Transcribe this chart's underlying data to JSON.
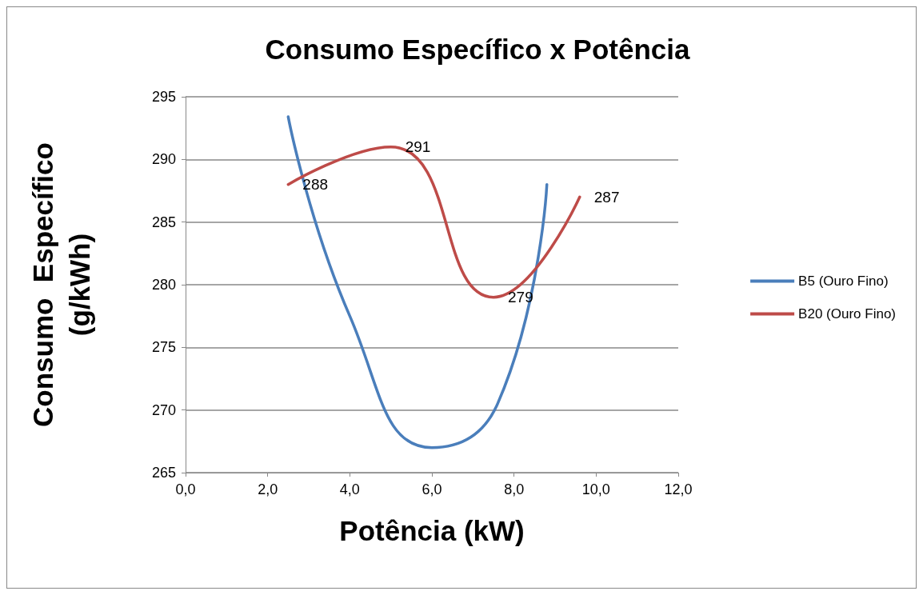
{
  "chart_data": {
    "type": "line",
    "title": "Consumo Específico x Potência",
    "xlabel": "Potência (kW)",
    "ylabel": "Consumo  Específico (g/kWh)",
    "xlim": [
      0,
      12
    ],
    "xticks": [
      {
        "value": 0,
        "label": "0,0"
      },
      {
        "value": 2,
        "label": "2,0"
      },
      {
        "value": 4,
        "label": "4,0"
      },
      {
        "value": 6,
        "label": "6,0"
      },
      {
        "value": 8,
        "label": "8,0"
      },
      {
        "value": 10,
        "label": "10,0"
      },
      {
        "value": 12,
        "label": "12,0"
      }
    ],
    "ylim": [
      265,
      295
    ],
    "yticks": [
      265,
      270,
      275,
      280,
      285,
      290,
      295
    ],
    "grid": "y",
    "legend": "right",
    "marker": "none",
    "series": [
      {
        "name": "B5 (Ouro Fino)",
        "color": "#4a7ebb",
        "x": [
          2.5,
          4.0,
          6.0,
          7.6,
          8.8
        ],
        "values": [
          293.4,
          277.5,
          267,
          270.5,
          288
        ]
      },
      {
        "name": "B20 (Ouro Fino)",
        "color": "#be4b48",
        "x": [
          2.5,
          5.0,
          7.5,
          9.6
        ],
        "values": [
          288,
          291,
          279,
          287
        ],
        "data_labels": true
      }
    ]
  }
}
